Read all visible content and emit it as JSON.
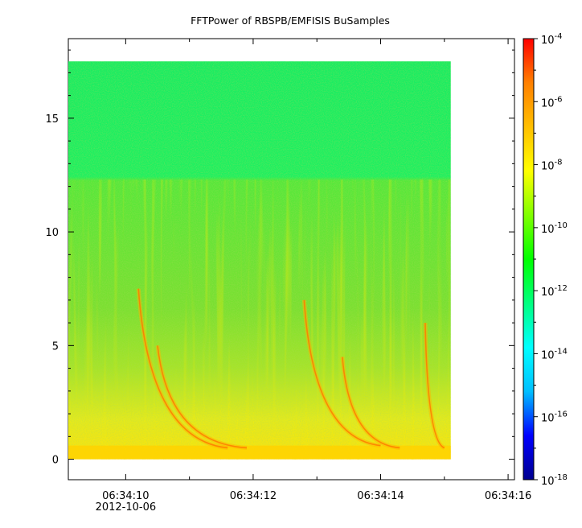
{
  "chart_data": {
    "type": "heatmap",
    "title": "FFTPower of RBSPB/EMFISIS  BuSamples",
    "x_axis": {
      "ticks": [
        {
          "value": "06:34:10",
          "date": "2012-10-06"
        },
        {
          "value": "06:34:12",
          "date": ""
        },
        {
          "value": "06:34:14",
          "date": ""
        },
        {
          "value": "06:34:16",
          "date": ""
        }
      ],
      "range": [
        "06:34:09.1",
        "06:34:16.1"
      ],
      "data_range": [
        "06:34:09.1",
        "06:34:15.1"
      ]
    },
    "y_axis": {
      "ticks": [
        "0",
        "5",
        "10",
        "15"
      ],
      "range": [
        -0.9,
        18.5
      ],
      "data_range": [
        0,
        17.5
      ]
    },
    "colorbar": {
      "scale": "log",
      "range_exponent": [
        -18,
        -4
      ],
      "tick_exponents": [
        "-4",
        "-6",
        "-8",
        "-10",
        "-12",
        "-14",
        "-16",
        "-18"
      ],
      "colors": [
        "#00008f",
        "#0000ff",
        "#00bfff",
        "#00ffff",
        "#00ff80",
        "#00ff00",
        "#80ff00",
        "#ffff00",
        "#ffbf00",
        "#ff8000",
        "#ff0000"
      ]
    },
    "grid": false,
    "features": {
      "noise_floor_green_above_khz": 12.3,
      "lower_band_yellow_below_khz": 4.5,
      "chorus_tones": [
        {
          "t_start": "06:34:10.2",
          "f_start": 7.5,
          "t_end": "06:34:11.6",
          "f_end": 0.5
        },
        {
          "t_start": "06:34:10.5",
          "f_start": 5.0,
          "t_end": "06:34:11.9",
          "f_end": 0.5
        },
        {
          "t_start": "06:34:12.8",
          "f_start": 7.0,
          "t_end": "06:34:14.0",
          "f_end": 0.6
        },
        {
          "t_start": "06:34:13.4",
          "f_start": 4.5,
          "t_end": "06:34:14.3",
          "f_end": 0.5
        },
        {
          "t_start": "06:34:14.7",
          "f_start": 6.0,
          "t_end": "06:34:15.0",
          "f_end": 0.5
        }
      ]
    }
  }
}
